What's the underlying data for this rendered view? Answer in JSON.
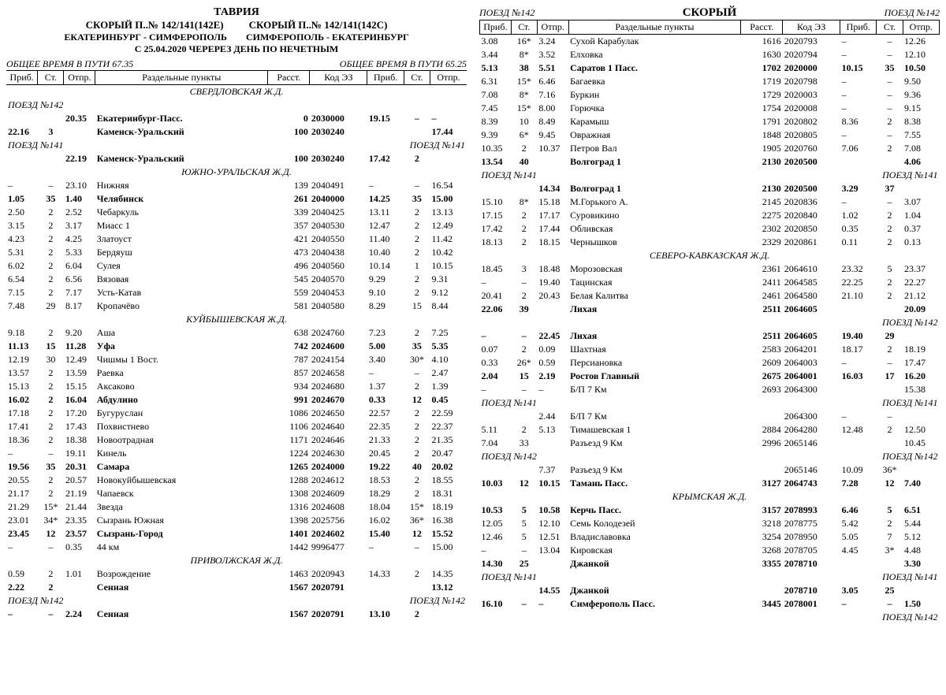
{
  "labels": {
    "prib": "Приб.",
    "st": "Ст.",
    "otpr": "Отпр.",
    "points": "Раздельные пункты",
    "rast": "Расст.",
    "code": "Код ЭЗ"
  },
  "header_left": {
    "tavria": "ТАВРИЯ",
    "left_title": "СКОРЫЙ П..№ 142/141(142Е)",
    "right_title": "СКОРЫЙ П..№ 142/141(142С)",
    "left_route": "ЕКАТЕРИНБУРГ - СИМФЕРОПОЛЬ",
    "right_route": "СИМФЕРОПОЛЬ - ЕКАТЕРИНБУРГ",
    "period": "С 25.04.2020 ЧЕРЕРЕЗ ДЕНЬ ПО НЕЧЕТНЫМ",
    "total_left": "ОБЩЕЕ ВРЕМЯ В ПУТИ 67.35",
    "total_right": "ОБЩЕЕ ВРЕМЯ В ПУТИ 65.25"
  },
  "header_right": {
    "left": "ПОЕЗД №142",
    "center": "СКОРЫЙ",
    "right": "ПОЕЗД №142"
  },
  "left_rows": [
    {
      "type": "region",
      "name": "СВЕРДЛОВСКАЯ Ж.Д."
    },
    {
      "type": "train",
      "left": "ПОЕЗД №142"
    },
    {
      "bold": true,
      "prib": "",
      "st": "",
      "otpr": "20.35",
      "name": "Екатеринбург-Пасс.",
      "rast": "0",
      "code": "2030000",
      "prib2": "19.15",
      "st2": "–",
      "otpr2": "–"
    },
    {
      "bold": true,
      "prib": "22.16",
      "st": "3",
      "otpr": "",
      "name": "Каменск-Уральский",
      "rast": "100",
      "code": "2030240",
      "prib2": "",
      "st2": "",
      "otpr2": "17.44"
    },
    {
      "type": "train",
      "left": "ПОЕЗД №141",
      "right": "ПОЕЗД №141"
    },
    {
      "bold": true,
      "prib": "",
      "st": "",
      "otpr": "22.19",
      "name": "Каменск-Уральский",
      "rast": "100",
      "code": "2030240",
      "prib2": "17.42",
      "st2": "2",
      "otpr2": ""
    },
    {
      "type": "region",
      "name": "ЮЖНО-УРАЛЬСКАЯ Ж.Д."
    },
    {
      "prib": "–",
      "st": "–",
      "otpr": "23.10",
      "name": "Нижняя",
      "rast": "139",
      "code": "2040491",
      "prib2": "–",
      "st2": "–",
      "otpr2": "16.54"
    },
    {
      "bold": true,
      "prib": "1.05",
      "st": "35",
      "otpr": "1.40",
      "name": "Челябинск",
      "rast": "261",
      "code": "2040000",
      "prib2": "14.25",
      "st2": "35",
      "otpr2": "15.00"
    },
    {
      "prib": "2.50",
      "st": "2",
      "otpr": "2.52",
      "name": "Чебаркуль",
      "rast": "339",
      "code": "2040425",
      "prib2": "13.11",
      "st2": "2",
      "otpr2": "13.13"
    },
    {
      "prib": "3.15",
      "st": "2",
      "otpr": "3.17",
      "name": "Миасс 1",
      "rast": "357",
      "code": "2040530",
      "prib2": "12.47",
      "st2": "2",
      "otpr2": "12.49"
    },
    {
      "prib": "4.23",
      "st": "2",
      "otpr": "4.25",
      "name": "Златоуст",
      "rast": "421",
      "code": "2040550",
      "prib2": "11.40",
      "st2": "2",
      "otpr2": "11.42"
    },
    {
      "prib": "5.31",
      "st": "2",
      "otpr": "5.33",
      "name": "Бердяуш",
      "rast": "473",
      "code": "2040438",
      "prib2": "10.40",
      "st2": "2",
      "otpr2": "10.42"
    },
    {
      "prib": "6.02",
      "st": "2",
      "otpr": "6.04",
      "name": "Сулея",
      "rast": "496",
      "code": "2040560",
      "prib2": "10.14",
      "st2": "1",
      "otpr2": "10.15"
    },
    {
      "prib": "6.54",
      "st": "2",
      "otpr": "6.56",
      "name": "Вязовая",
      "rast": "545",
      "code": "2040570",
      "prib2": "9.29",
      "st2": "2",
      "otpr2": "9.31"
    },
    {
      "prib": "7.15",
      "st": "2",
      "otpr": "7.17",
      "name": "Усть-Катав",
      "rast": "559",
      "code": "2040453",
      "prib2": "9.10",
      "st2": "2",
      "otpr2": "9.12"
    },
    {
      "prib": "7.48",
      "st": "29",
      "otpr": "8.17",
      "name": "Кропачёво",
      "rast": "581",
      "code": "2040580",
      "prib2": "8.29",
      "st2": "15",
      "otpr2": "8.44"
    },
    {
      "type": "region",
      "name": "КУЙБЫШЕВСКАЯ Ж.Д."
    },
    {
      "prib": "9.18",
      "st": "2",
      "otpr": "9.20",
      "name": "Аша",
      "rast": "638",
      "code": "2024760",
      "prib2": "7.23",
      "st2": "2",
      "otpr2": "7.25"
    },
    {
      "bold": true,
      "prib": "11.13",
      "st": "15",
      "otpr": "11.28",
      "name": "Уфа",
      "rast": "742",
      "code": "2024600",
      "prib2": "5.00",
      "st2": "35",
      "otpr2": "5.35"
    },
    {
      "prib": "12.19",
      "st": "30",
      "otpr": "12.49",
      "name": "Чишмы 1 Вост.",
      "rast": "787",
      "code": "2024154",
      "prib2": "3.40",
      "st2": "30*",
      "otpr2": "4.10"
    },
    {
      "prib": "13.57",
      "st": "2",
      "otpr": "13.59",
      "name": "Раевка",
      "rast": "857",
      "code": "2024658",
      "prib2": "–",
      "st2": "–",
      "otpr2": "2.47"
    },
    {
      "prib": "15.13",
      "st": "2",
      "otpr": "15.15",
      "name": "Аксаково",
      "rast": "934",
      "code": "2024680",
      "prib2": "1.37",
      "st2": "2",
      "otpr2": "1.39"
    },
    {
      "bold": true,
      "prib": "16.02",
      "st": "2",
      "otpr": "16.04",
      "name": "Абдулино",
      "rast": "991",
      "code": "2024670",
      "prib2": "0.33",
      "st2": "12",
      "otpr2": "0.45"
    },
    {
      "prib": "17.18",
      "st": "2",
      "otpr": "17.20",
      "name": "Бугуруслан",
      "rast": "1086",
      "code": "2024650",
      "prib2": "22.57",
      "st2": "2",
      "otpr2": "22.59"
    },
    {
      "prib": "17.41",
      "st": "2",
      "otpr": "17.43",
      "name": "Похвистнево",
      "rast": "1106",
      "code": "2024640",
      "prib2": "22.35",
      "st2": "2",
      "otpr2": "22.37"
    },
    {
      "prib": "18.36",
      "st": "2",
      "otpr": "18.38",
      "name": "Новоотрадная",
      "rast": "1171",
      "code": "2024646",
      "prib2": "21.33",
      "st2": "2",
      "otpr2": "21.35"
    },
    {
      "prib": "–",
      "st": "–",
      "otpr": "19.11",
      "name": "Кинель",
      "rast": "1224",
      "code": "2024630",
      "prib2": "20.45",
      "st2": "2",
      "otpr2": "20.47"
    },
    {
      "bold": true,
      "prib": "19.56",
      "st": "35",
      "otpr": "20.31",
      "name": "Самара",
      "rast": "1265",
      "code": "2024000",
      "prib2": "19.22",
      "st2": "40",
      "otpr2": "20.02"
    },
    {
      "prib": "20.55",
      "st": "2",
      "otpr": "20.57",
      "name": "Новокуйбышевская",
      "rast": "1288",
      "code": "2024612",
      "prib2": "18.53",
      "st2": "2",
      "otpr2": "18.55"
    },
    {
      "prib": "21.17",
      "st": "2",
      "otpr": "21.19",
      "name": "Чапаевск",
      "rast": "1308",
      "code": "2024609",
      "prib2": "18.29",
      "st2": "2",
      "otpr2": "18.31"
    },
    {
      "prib": "21.29",
      "st": "15*",
      "otpr": "21.44",
      "name": "Звезда",
      "rast": "1316",
      "code": "2024608",
      "prib2": "18.04",
      "st2": "15*",
      "otpr2": "18.19"
    },
    {
      "prib": "23.01",
      "st": "34*",
      "otpr": "23.35",
      "name": "Сызрань Южная",
      "rast": "1398",
      "code": "2025756",
      "prib2": "16.02",
      "st2": "36*",
      "otpr2": "16.38"
    },
    {
      "bold": true,
      "prib": "23.45",
      "st": "12",
      "otpr": "23.57",
      "name": "Сызрань-Город",
      "rast": "1401",
      "code": "2024602",
      "prib2": "15.40",
      "st2": "12",
      "otpr2": "15.52"
    },
    {
      "prib": "–",
      "st": "–",
      "otpr": "0.35",
      "name": "44 км",
      "rast": "1442",
      "code": "9996477",
      "prib2": "–",
      "st2": "–",
      "otpr2": "15.00"
    },
    {
      "type": "region",
      "name": "ПРИВОЛЖСКАЯ Ж.Д."
    },
    {
      "prib": "0.59",
      "st": "2",
      "otpr": "1.01",
      "name": "Возрождение",
      "rast": "1463",
      "code": "2020943",
      "prib2": "14.33",
      "st2": "2",
      "otpr2": "14.35"
    },
    {
      "bold": true,
      "prib": "2.22",
      "st": "2",
      "otpr": "",
      "name": "Сенная",
      "rast": "1567",
      "code": "2020791",
      "prib2": "",
      "st2": "",
      "otpr2": "13.12"
    },
    {
      "type": "train",
      "left": "ПОЕЗД №142",
      "right": "ПОЕЗД №142"
    },
    {
      "bold": true,
      "prib": "–",
      "st": "–",
      "otpr": "2.24",
      "name": "Сенная",
      "rast": "1567",
      "code": "2020791",
      "prib2": "13.10",
      "st2": "2",
      "otpr2": ""
    }
  ],
  "right_rows": [
    {
      "prib": "3.08",
      "st": "16*",
      "otpr": "3.24",
      "name": "Сухой Карабулак",
      "rast": "1616",
      "code": "2020793",
      "prib2": "–",
      "st2": "–",
      "otpr2": "12.26"
    },
    {
      "prib": "3.44",
      "st": "8*",
      "otpr": "3.52",
      "name": "Елховка",
      "rast": "1630",
      "code": "2020794",
      "prib2": "–",
      "st2": "–",
      "otpr2": "12.10"
    },
    {
      "bold": true,
      "prib": "5.13",
      "st": "38",
      "otpr": "5.51",
      "name": "Саратов 1 Пасс.",
      "rast": "1702",
      "code": "2020000",
      "prib2": "10.15",
      "st2": "35",
      "otpr2": "10.50"
    },
    {
      "prib": "6.31",
      "st": "15*",
      "otpr": "6.46",
      "name": "Багаевка",
      "rast": "1719",
      "code": "2020798",
      "prib2": "–",
      "st2": "–",
      "otpr2": "9.50"
    },
    {
      "prib": "7.08",
      "st": "8*",
      "otpr": "7.16",
      "name": "Буркин",
      "rast": "1729",
      "code": "2020003",
      "prib2": "–",
      "st2": "–",
      "otpr2": "9.36"
    },
    {
      "prib": "7.45",
      "st": "15*",
      "otpr": "8.00",
      "name": "Горючка",
      "rast": "1754",
      "code": "2020008",
      "prib2": "–",
      "st2": "–",
      "otpr2": "9.15"
    },
    {
      "prib": "8.39",
      "st": "10",
      "otpr": "8.49",
      "name": "Карамыш",
      "rast": "1791",
      "code": "2020802",
      "prib2": "8.36",
      "st2": "2",
      "otpr2": "8.38"
    },
    {
      "prib": "9.39",
      "st": "6*",
      "otpr": "9.45",
      "name": "Овражная",
      "rast": "1848",
      "code": "2020805",
      "prib2": "–",
      "st2": "–",
      "otpr2": "7.55"
    },
    {
      "prib": "10.35",
      "st": "2",
      "otpr": "10.37",
      "name": "Петров Вал",
      "rast": "1905",
      "code": "2020760",
      "prib2": "7.06",
      "st2": "2",
      "otpr2": "7.08"
    },
    {
      "bold": true,
      "prib": "13.54",
      "st": "40",
      "otpr": "",
      "name": "Волгоград 1",
      "rast": "2130",
      "code": "2020500",
      "prib2": "",
      "st2": "",
      "otpr2": "4.06"
    },
    {
      "type": "train",
      "left": "ПОЕЗД №141",
      "right": "ПОЕЗД №141"
    },
    {
      "bold": true,
      "prib": "",
      "st": "",
      "otpr": "14.34",
      "name": "Волгоград 1",
      "rast": "2130",
      "code": "2020500",
      "prib2": "3.29",
      "st2": "37",
      "otpr2": ""
    },
    {
      "prib": "15.10",
      "st": "8*",
      "otpr": "15.18",
      "name": "М.Горького А.",
      "rast": "2145",
      "code": "2020836",
      "prib2": "–",
      "st2": "–",
      "otpr2": "3.07"
    },
    {
      "prib": "17.15",
      "st": "2",
      "otpr": "17.17",
      "name": "Суровикино",
      "rast": "2275",
      "code": "2020840",
      "prib2": "1.02",
      "st2": "2",
      "otpr2": "1.04"
    },
    {
      "prib": "17.42",
      "st": "2",
      "otpr": "17.44",
      "name": "Обливская",
      "rast": "2302",
      "code": "2020850",
      "prib2": "0.35",
      "st2": "2",
      "otpr2": "0.37"
    },
    {
      "prib": "18.13",
      "st": "2",
      "otpr": "18.15",
      "name": "Чернышков",
      "rast": "2329",
      "code": "2020861",
      "prib2": "0.11",
      "st2": "2",
      "otpr2": "0.13"
    },
    {
      "type": "region",
      "name": "СЕВЕРО-КАВКАЗСКАЯ Ж.Д."
    },
    {
      "prib": "18.45",
      "st": "3",
      "otpr": "18.48",
      "name": "Морозовская",
      "rast": "2361",
      "code": "2064610",
      "prib2": "23.32",
      "st2": "5",
      "otpr2": "23.37"
    },
    {
      "prib": "–",
      "st": "–",
      "otpr": "19.40",
      "name": "Тацинская",
      "rast": "2411",
      "code": "2064585",
      "prib2": "22.25",
      "st2": "2",
      "otpr2": "22.27"
    },
    {
      "prib": "20.41",
      "st": "2",
      "otpr": "20.43",
      "name": "Белая Калитва",
      "rast": "2461",
      "code": "2064580",
      "prib2": "21.10",
      "st2": "2",
      "otpr2": "21.12"
    },
    {
      "bold": true,
      "prib": "22.06",
      "st": "39",
      "otpr": "",
      "name": "Лихая",
      "rast": "2511",
      "code": "2064605",
      "prib2": "",
      "st2": "",
      "otpr2": "20.09"
    },
    {
      "type": "train",
      "left": "",
      "right": "ПОЕЗД №142"
    },
    {
      "bold": true,
      "prib": "–",
      "st": "–",
      "otpr": "22.45",
      "name": "Лихая",
      "rast": "2511",
      "code": "2064605",
      "prib2": "19.40",
      "st2": "29",
      "otpr2": ""
    },
    {
      "prib": "0.07",
      "st": "2",
      "otpr": "0.09",
      "name": "Шахтная",
      "rast": "2583",
      "code": "2064201",
      "prib2": "18.17",
      "st2": "2",
      "otpr2": "18.19"
    },
    {
      "prib": "0.33",
      "st": "26*",
      "otpr": "0.59",
      "name": "Персиановка",
      "rast": "2609",
      "code": "2064003",
      "prib2": "–",
      "st2": "–",
      "otpr2": "17.47"
    },
    {
      "bold": true,
      "prib": "2.04",
      "st": "15",
      "otpr": "2.19",
      "name": "Ростов Главный",
      "rast": "2675",
      "code": "2064001",
      "prib2": "16.03",
      "st2": "17",
      "otpr2": "16.20"
    },
    {
      "prib": "–",
      "st": "–",
      "otpr": "–",
      "name": "Б/П 7 Км",
      "rast": "2693",
      "code": "2064300",
      "prib2": "",
      "st2": "",
      "otpr2": "15.38"
    },
    {
      "type": "train",
      "left": "ПОЕЗД №141",
      "right": "ПОЕЗД №141"
    },
    {
      "prib": "",
      "st": "",
      "otpr": "2.44",
      "name": "Б/П 7 Км",
      "rast": "",
      "code": "2064300",
      "prib2": "–",
      "st2": "–",
      "otpr2": ""
    },
    {
      "prib": "5.11",
      "st": "2",
      "otpr": "5.13",
      "name": "Тимашевская 1",
      "rast": "2884",
      "code": "2064280",
      "prib2": "12.48",
      "st2": "2",
      "otpr2": "12.50"
    },
    {
      "prib": "7.04",
      "st": "33",
      "otpr": "",
      "name": "Разъезд 9 Км",
      "rast": "2996",
      "code": "2065146",
      "prib2": "",
      "st2": "",
      "otpr2": "10.45"
    },
    {
      "type": "train",
      "left": "ПОЕЗД №142",
      "right": "ПОЕЗД №142"
    },
    {
      "prib": "",
      "st": "",
      "otpr": "7.37",
      "name": "Разъезд 9 Км",
      "rast": "",
      "code": "2065146",
      "prib2": "10.09",
      "st2": "36*",
      "otpr2": ""
    },
    {
      "bold": true,
      "prib": "10.03",
      "st": "12",
      "otpr": "10.15",
      "name": "Тамань Пасс.",
      "rast": "3127",
      "code": "2064743",
      "prib2": "7.28",
      "st2": "12",
      "otpr2": "7.40"
    },
    {
      "type": "region",
      "name": "КРЫМСКАЯ Ж.Д."
    },
    {
      "bold": true,
      "prib": "10.53",
      "st": "5",
      "otpr": "10.58",
      "name": "Керчь Пасс.",
      "rast": "3157",
      "code": "2078993",
      "prib2": "6.46",
      "st2": "5",
      "otpr2": "6.51"
    },
    {
      "prib": "12.05",
      "st": "5",
      "otpr": "12.10",
      "name": "Семь Колодезей",
      "rast": "3218",
      "code": "2078775",
      "prib2": "5.42",
      "st2": "2",
      "otpr2": "5.44"
    },
    {
      "prib": "12.46",
      "st": "5",
      "otpr": "12.51",
      "name": "Владиславовка",
      "rast": "3254",
      "code": "2078950",
      "prib2": "5.05",
      "st2": "7",
      "otpr2": "5.12"
    },
    {
      "prib": "–",
      "st": "–",
      "otpr": "13.04",
      "name": "Кировская",
      "rast": "3268",
      "code": "2078705",
      "prib2": "4.45",
      "st2": "3*",
      "otpr2": "4.48"
    },
    {
      "bold": true,
      "prib": "14.30",
      "st": "25",
      "otpr": "",
      "name": "Джанкой",
      "rast": "3355",
      "code": "2078710",
      "prib2": "",
      "st2": "",
      "otpr2": "3.30"
    },
    {
      "type": "train",
      "left": "ПОЕЗД №141",
      "right": "ПОЕЗД №141"
    },
    {
      "bold": true,
      "prib": "",
      "st": "",
      "otpr": "14.55",
      "name": "Джанкой",
      "rast": "",
      "code": "2078710",
      "prib2": "3.05",
      "st2": "25",
      "otpr2": ""
    },
    {
      "bold": true,
      "prib": "16.10",
      "st": "–",
      "otpr": "–",
      "name": "Симферополь Пасс.",
      "rast": "3445",
      "code": "2078001",
      "prib2": "–",
      "st2": "–",
      "otpr2": "1.50"
    },
    {
      "type": "train",
      "left": "",
      "right": "ПОЕЗД №142"
    }
  ]
}
